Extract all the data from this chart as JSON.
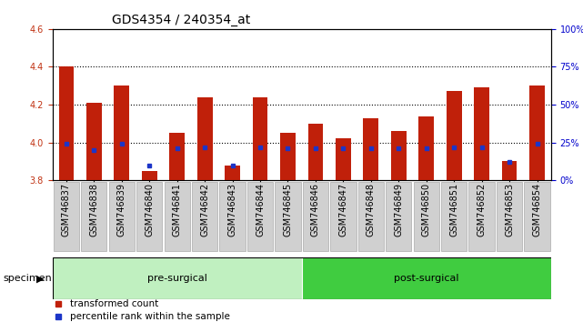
{
  "title": "GDS4354 / 240354_at",
  "samples": [
    "GSM746837",
    "GSM746838",
    "GSM746839",
    "GSM746840",
    "GSM746841",
    "GSM746842",
    "GSM746843",
    "GSM746844",
    "GSM746845",
    "GSM746846",
    "GSM746847",
    "GSM746848",
    "GSM746849",
    "GSM746850",
    "GSM746851",
    "GSM746852",
    "GSM746853",
    "GSM746854"
  ],
  "red_values": [
    4.4,
    4.21,
    4.3,
    3.85,
    4.05,
    4.24,
    3.88,
    4.24,
    4.05,
    4.1,
    4.02,
    4.13,
    4.06,
    4.14,
    4.27,
    4.29,
    3.9,
    4.3
  ],
  "blue_percentiles": [
    24,
    20,
    24,
    10,
    21,
    22,
    10,
    22,
    21,
    21,
    21,
    21,
    21,
    21,
    22,
    22,
    12,
    24
  ],
  "ylim_left": [
    3.8,
    4.6
  ],
  "ylim_right": [
    0,
    100
  ],
  "yticks_left": [
    3.8,
    4.0,
    4.2,
    4.4,
    4.6
  ],
  "yticks_right": [
    0,
    25,
    50,
    75,
    100
  ],
  "ytick_labels_right": [
    "0%",
    "25%",
    "50%",
    "75%",
    "100%"
  ],
  "group1_label": "pre-surgical",
  "group2_label": "post-surgical",
  "group1_count": 9,
  "group2_count": 9,
  "bar_color": "#c0200a",
  "blue_color": "#1c35c8",
  "group1_bg": "#c0f0c0",
  "group2_bg": "#40cc40",
  "tick_bg": "#d0d0d0",
  "specimen_label": "specimen",
  "legend_red": "transformed count",
  "legend_blue": "percentile rank within the sample",
  "bar_width": 0.55,
  "bar_bottom": 3.8,
  "title_fontsize": 10,
  "tick_fontsize": 7,
  "label_fontsize": 8,
  "legend_fontsize": 7.5,
  "grid_lines": [
    4.0,
    4.2,
    4.4
  ]
}
